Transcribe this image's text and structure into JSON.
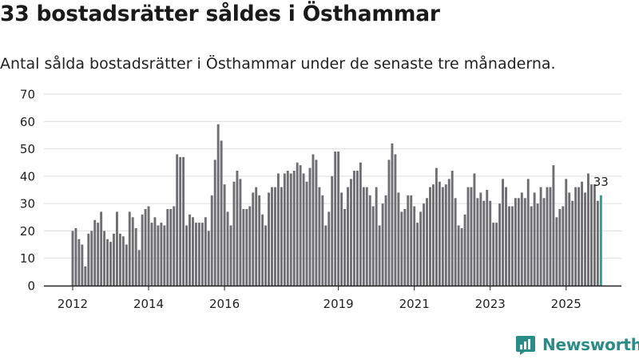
{
  "header": {
    "title": "33 bostadsrätter såldes i Östhammar",
    "subtitle": "Antal sålda bostadsrätter i Östhammar under de senaste tre månaderna."
  },
  "brand": {
    "name": "Newsworthy",
    "icon": "newsworthy-logo-icon"
  },
  "colors": {
    "bar": "#6f6e73",
    "highlight": "#2a9d96",
    "grid": "#dddddd",
    "axis": "#222222"
  },
  "chart_data": {
    "type": "bar",
    "title": "33 bostadsrätter såldes i Östhammar",
    "subtitle": "Antal sålda bostadsrätter i Östhammar under de senaste tre månaderna.",
    "xlabel": "",
    "ylabel": "",
    "ylim": [
      0,
      70
    ],
    "yticks": [
      0,
      10,
      20,
      30,
      40,
      50,
      60,
      70
    ],
    "grid": true,
    "x_start": "2012-01",
    "frequency": "monthly",
    "xtick_labels": [
      {
        "label": "2012",
        "index": 0
      },
      {
        "label": "2014",
        "index": 24
      },
      {
        "label": "2016",
        "index": 48
      },
      {
        "label": "2019",
        "index": 84
      },
      {
        "label": "2021",
        "index": 108
      },
      {
        "label": "2023",
        "index": 132
      },
      {
        "label": "2025",
        "index": 156
      }
    ],
    "values": [
      20,
      21,
      17,
      15,
      7,
      19,
      20,
      24,
      23,
      27,
      20,
      17,
      16,
      19,
      27,
      19,
      18,
      15,
      27,
      25,
      21,
      13,
      26,
      28,
      29,
      23,
      25,
      22,
      23,
      22,
      28,
      28,
      29,
      48,
      47,
      47,
      22,
      26,
      25,
      23,
      23,
      23,
      25,
      20,
      33,
      46,
      59,
      53,
      37,
      27,
      22,
      38,
      42,
      39,
      28,
      28,
      29,
      34,
      36,
      33,
      26,
      22,
      34,
      36,
      36,
      41,
      36,
      41,
      42,
      41,
      42,
      45,
      44,
      41,
      38,
      43,
      48,
      46,
      36,
      33,
      22,
      27,
      40,
      49,
      49,
      34,
      28,
      36,
      39,
      42,
      42,
      45,
      36,
      36,
      33,
      29,
      36,
      22,
      30,
      33,
      46,
      52,
      48,
      34,
      27,
      28,
      33,
      33,
      29,
      23,
      27,
      30,
      32,
      36,
      37,
      43,
      38,
      36,
      37,
      39,
      42,
      32,
      22,
      21,
      26,
      36,
      36,
      41,
      32,
      34,
      31,
      35,
      31,
      23,
      23,
      30,
      39,
      36,
      29,
      29,
      32,
      32,
      34,
      32,
      39,
      29,
      34,
      30,
      36,
      32,
      36,
      36,
      44,
      25,
      28,
      29,
      39,
      34,
      31,
      36,
      36,
      38,
      34,
      41,
      37,
      37,
      31,
      33
    ],
    "highlight_last": true,
    "annotations": [
      {
        "text": "33",
        "target": "last"
      }
    ]
  }
}
